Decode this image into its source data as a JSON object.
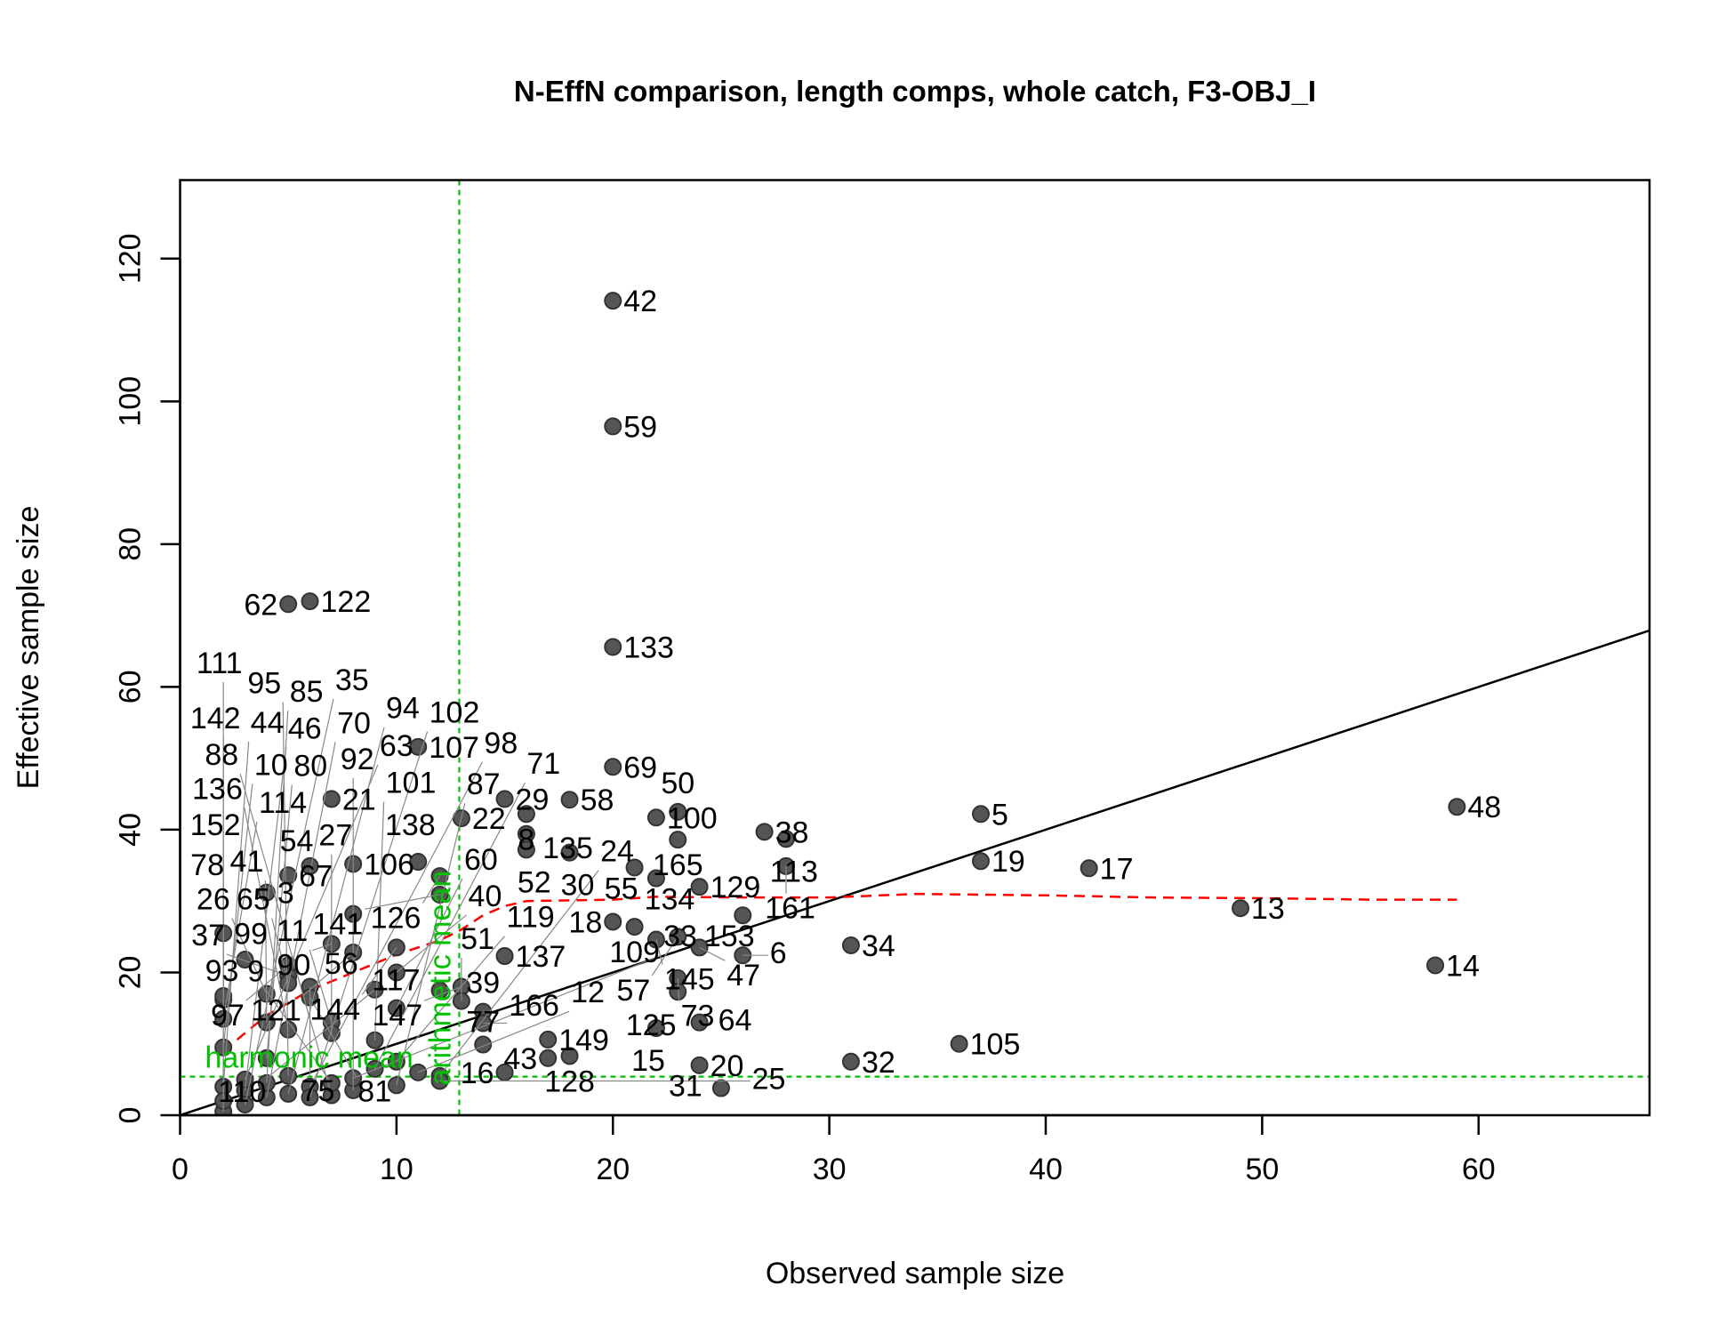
{
  "chart_data": {
    "type": "scatter",
    "title": "N-EffN comparison, length comps, whole catch, F3-OBJ_I",
    "xlabel": "Observed sample size",
    "ylabel": "Effective sample size",
    "xlim": [
      0,
      67.9
    ],
    "ylim": [
      0,
      131
    ],
    "xticks": [
      0,
      10,
      20,
      30,
      40,
      50,
      60
    ],
    "yticks": [
      0,
      20,
      40,
      60,
      80,
      100,
      120
    ],
    "grid": false,
    "legend": "none",
    "colors": {
      "points": "#3a3a3a",
      "identity_line": "#000000",
      "smoother": "#ff0000",
      "means": "#00c000"
    },
    "points": [
      {
        "label": "42",
        "x": 20,
        "y": 114.1
      },
      {
        "label": "59",
        "x": 20,
        "y": 96.5
      },
      {
        "label": "133",
        "x": 20,
        "y": 65.6
      },
      {
        "label": "69",
        "x": 20,
        "y": 48.8
      },
      {
        "label": "122",
        "x": 6,
        "y": 72
      },
      {
        "label": "62",
        "x": 5,
        "y": 71.6
      },
      {
        "label": "107",
        "x": 11,
        "y": 51.6
      },
      {
        "label": "21",
        "x": 7,
        "y": 44.3
      },
      {
        "label": "22",
        "x": 13,
        "y": 41.6
      },
      {
        "label": "29",
        "x": 15,
        "y": 44.3
      },
      {
        "label": "8",
        "x": 16,
        "y": 42.2
      },
      {
        "label": "135",
        "x": 16,
        "y": 39.4
      },
      {
        "label": "52",
        "x": 16,
        "y": 37.2
      },
      {
        "label": "30",
        "x": 18,
        "y": 36.8
      },
      {
        "label": "58",
        "x": 18,
        "y": 44.2
      },
      {
        "label": "100",
        "x": 22,
        "y": 41.7
      },
      {
        "label": "50",
        "x": 23,
        "y": 42.5
      },
      {
        "label": "165",
        "x": 23,
        "y": 38.6
      },
      {
        "label": "38",
        "x": 27,
        "y": 39.7
      },
      {
        "label": "113",
        "x": 28,
        "y": 38.7
      },
      {
        "label": "161",
        "x": 28,
        "y": 34.9
      },
      {
        "label": "5",
        "x": 37,
        "y": 42.2
      },
      {
        "label": "19",
        "x": 37,
        "y": 35.6
      },
      {
        "label": "17",
        "x": 42,
        "y": 34.6
      },
      {
        "label": "48",
        "x": 59,
        "y": 43.2
      },
      {
        "label": "13",
        "x": 49,
        "y": 29.0
      },
      {
        "label": "14",
        "x": 58,
        "y": 21.0
      },
      {
        "label": "105",
        "x": 36,
        "y": 10.0
      },
      {
        "label": "34",
        "x": 31,
        "y": 23.8
      },
      {
        "label": "32",
        "x": 31,
        "y": 7.5
      },
      {
        "label": "20",
        "x": 24,
        "y": 7.0
      },
      {
        "label": "31",
        "x": 25,
        "y": 3.8
      },
      {
        "label": "55",
        "x": 21,
        "y": 34.7
      },
      {
        "label": "134",
        "x": 22,
        "y": 33.2
      },
      {
        "label": "129",
        "x": 24,
        "y": 32.0
      },
      {
        "label": "153",
        "x": 26,
        "y": 28.0
      },
      {
        "label": "18",
        "x": 20,
        "y": 27.1
      },
      {
        "label": "109",
        "x": 21,
        "y": 26.4
      },
      {
        "label": "145",
        "x": 22,
        "y": 24.6
      },
      {
        "label": "57",
        "x": 23,
        "y": 25.0
      },
      {
        "label": "47",
        "x": 24,
        "y": 23.5
      },
      {
        "label": "6",
        "x": 26,
        "y": 22.4
      },
      {
        "label": "137",
        "x": 15,
        "y": 22.3
      },
      {
        "label": "73",
        "x": 23,
        "y": 19.2
      },
      {
        "label": "125",
        "x": 23,
        "y": 17.3
      },
      {
        "label": "15",
        "x": 22,
        "y": 12.2
      },
      {
        "label": "64",
        "x": 24,
        "y": 13.0
      },
      {
        "label": "149",
        "x": 17,
        "y": 10.6
      },
      {
        "label": "43",
        "x": 17,
        "y": 8.0
      },
      {
        "label": "128",
        "x": 18,
        "y": 8.3
      },
      {
        "label": "16",
        "x": 15,
        "y": 6.0
      },
      {
        "label": "77",
        "x": 14,
        "y": 9.9
      },
      {
        "label": "39",
        "x": 14,
        "y": 14.5
      },
      {
        "label": "166",
        "x": 14,
        "y": 12.9
      },
      {
        "label": "147",
        "x": 13,
        "y": 18.0
      },
      {
        "label": "51",
        "x": 13,
        "y": 16.0
      },
      {
        "label": "117",
        "x": 12,
        "y": 17.5
      },
      {
        "label": "3",
        "x": 4,
        "y": 31.2
      },
      {
        "label": "67",
        "x": 5,
        "y": 33.6
      },
      {
        "label": "54",
        "x": 6,
        "y": 34.9
      },
      {
        "label": "106",
        "x": 8,
        "y": 35.2
      },
      {
        "label": "138",
        "x": 11,
        "y": 35.5
      },
      {
        "label": "126",
        "x": 12,
        "y": 33.5
      },
      {
        "label": "141",
        "x": 12,
        "y": 30.9
      },
      {
        "label": "56",
        "x": 8,
        "y": 28.2
      },
      {
        "label": "99",
        "x": 2,
        "y": 25.5
      },
      {
        "label": "90",
        "x": 7,
        "y": 24.0
      },
      {
        "label": "144",
        "x": 10,
        "y": 23.5
      },
      {
        "label": "121",
        "x": 8,
        "y": 22.8
      },
      {
        "label": "40",
        "x": 10,
        "y": 20.0
      },
      {
        "label": "93",
        "x": 3,
        "y": 21.8
      },
      {
        "label": "97",
        "x": 5,
        "y": 21.0
      },
      {
        "label": "37",
        "x": 5,
        "y": 19.5
      },
      {
        "label": "75",
        "x": 6,
        "y": 18.0
      },
      {
        "label": "65",
        "x": 5,
        "y": 18.5
      },
      {
        "label": "81",
        "x": 6,
        "y": 16.5
      },
      {
        "label": "60",
        "x": 10,
        "y": 15.0
      },
      {
        "label": "110",
        "x": 9,
        "y": 17.6
      },
      {
        "label": "26",
        "x": 4,
        "y": 17.0
      },
      {
        "label": "78",
        "x": 2,
        "y": 16.2
      },
      {
        "label": "152",
        "x": 2,
        "y": 16.7
      },
      {
        "label": "114",
        "x": 2,
        "y": 13.5
      },
      {
        "label": "41",
        "x": 4,
        "y": 13.0
      },
      {
        "label": "136",
        "x": 5,
        "y": 12.0
      },
      {
        "label": "11",
        "x": 7,
        "y": 13.0
      },
      {
        "label": "27",
        "x": 7,
        "y": 11.5
      },
      {
        "label": "101",
        "x": 9,
        "y": 10.5
      },
      {
        "label": "10",
        "x": 2,
        "y": 9.5
      },
      {
        "label": "80",
        "x": 4,
        "y": 8.0
      },
      {
        "label": "119",
        "x": 10,
        "y": 7.5
      },
      {
        "label": "12",
        "x": 11,
        "y": 6.0
      },
      {
        "label": "24",
        "x": 12,
        "y": 5.5
      },
      {
        "label": "87",
        "x": 10,
        "y": 4.2
      },
      {
        "label": "25",
        "x": 12,
        "y": 4.8
      },
      {
        "label": "92",
        "x": 8,
        "y": 3.5
      },
      {
        "label": "88",
        "x": 7,
        "y": 2.8
      },
      {
        "label": "142",
        "x": 2,
        "y": 0.5
      },
      {
        "label": "44",
        "x": 2,
        "y": 4.0
      },
      {
        "label": "46",
        "x": 3,
        "y": 3.5
      },
      {
        "label": "63",
        "x": 3,
        "y": 5.0
      },
      {
        "label": "70",
        "x": 4,
        "y": 2.5
      },
      {
        "label": "85",
        "x": 4,
        "y": 4.5
      },
      {
        "label": "94",
        "x": 5,
        "y": 3.0
      },
      {
        "label": "95",
        "x": 5,
        "y": 5.5
      },
      {
        "label": "98",
        "x": 6,
        "y": 4.0
      },
      {
        "label": "102",
        "x": 6,
        "y": 2.5
      },
      {
        "label": "111",
        "x": 2,
        "y": 2.0
      },
      {
        "label": "35",
        "x": 3,
        "y": 1.5
      },
      {
        "label": "9",
        "x": 7,
        "y": 4.5
      },
      {
        "label": "33",
        "x": 8,
        "y": 5.2
      },
      {
        "label": "71",
        "x": 9,
        "y": 6.5
      }
    ],
    "identity_line": {
      "x": [
        0,
        67.9
      ],
      "y": [
        0,
        67.9
      ]
    },
    "smoother": {
      "x": [
        2,
        4,
        6,
        8,
        10,
        12,
        13,
        14,
        15,
        16,
        20,
        22,
        26,
        30,
        34,
        40,
        45,
        50,
        55,
        59
      ],
      "y": [
        9,
        14,
        17.5,
        20,
        22.5,
        24.5,
        26,
        28,
        29.3,
        30,
        30.2,
        30.6,
        30.5,
        30.5,
        31,
        30.8,
        30.5,
        30.4,
        30.2,
        30.2
      ]
    },
    "arithmetic_mean": {
      "value": 12.9,
      "label": "arithmetic mean"
    },
    "harmonic_mean": {
      "value": 5.4,
      "label": "harmonic mean"
    }
  }
}
